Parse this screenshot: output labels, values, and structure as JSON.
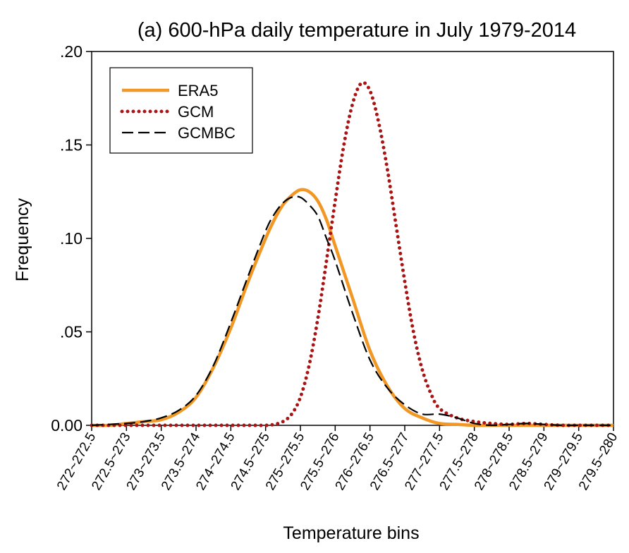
{
  "chart_data": {
    "type": "line",
    "title": "(a) 600-hPa daily temperature in July 1979-2014",
    "xlabel": "Temperature bins",
    "ylabel": "Frequency",
    "ylim": [
      0,
      0.2
    ],
    "y_ticks": [
      {
        "value": 0.0,
        "label": "0.00"
      },
      {
        "value": 0.05,
        "label": ".05"
      },
      {
        "value": 0.1,
        "label": ".10"
      },
      {
        "value": 0.15,
        "label": ".15"
      },
      {
        "value": 0.2,
        "label": ".20"
      }
    ],
    "categories": [
      "272~272.5",
      "272.5~273",
      "273~273.5",
      "273.5~274",
      "274~274.5",
      "274.5~275",
      "275~275.5",
      "275.5~276",
      "276~276.5",
      "276.5~277",
      "277~277.5",
      "277.5~278",
      "278~278.5",
      "278.5~279",
      "279~279.5",
      "279.5~280"
    ],
    "legend_position": "top-left",
    "series": [
      {
        "name": "ERA5",
        "color": "#f29624",
        "style": "solid",
        "x": [
          0,
          0.5,
          1,
          1.5,
          2,
          2.5,
          3,
          3.5,
          4,
          4.5,
          5,
          5.25,
          5.5,
          5.75,
          6,
          6.25,
          6.5,
          6.75,
          7,
          7.5,
          8,
          8.5,
          9,
          9.5,
          10,
          10.5,
          11,
          11.5,
          12,
          12.5,
          13,
          13.5,
          14,
          14.5,
          15
        ],
        "values": [
          0,
          0,
          0.001,
          0.002,
          0.003,
          0.007,
          0.015,
          0.031,
          0.052,
          0.077,
          0.1,
          0.11,
          0.118,
          0.123,
          0.126,
          0.125,
          0.12,
          0.11,
          0.096,
          0.068,
          0.04,
          0.021,
          0.009,
          0.004,
          0.001,
          0.0005,
          0,
          0,
          0,
          0,
          0,
          0,
          0,
          0,
          0
        ]
      },
      {
        "name": "GCM",
        "color": "#aa1414",
        "style": "dotted",
        "x": [
          0,
          1,
          2,
          3,
          4,
          4.5,
          5,
          5.25,
          5.5,
          5.75,
          6,
          6.25,
          6.5,
          6.75,
          7,
          7.25,
          7.5,
          7.75,
          8,
          8.25,
          8.5,
          8.75,
          9,
          9.25,
          9.5,
          9.75,
          10,
          10.5,
          11,
          11.5,
          12,
          12.5,
          13,
          13.5,
          14,
          14.5,
          15
        ],
        "values": [
          0,
          0,
          0,
          0,
          0,
          0,
          0,
          0.0005,
          0.002,
          0.006,
          0.015,
          0.032,
          0.057,
          0.088,
          0.12,
          0.15,
          0.172,
          0.183,
          0.179,
          0.162,
          0.137,
          0.107,
          0.077,
          0.05,
          0.03,
          0.017,
          0.009,
          0.004,
          0.002,
          0.001,
          0.0005,
          0.001,
          0.0005,
          0,
          0,
          0,
          0
        ]
      },
      {
        "name": "GCMBC",
        "color": "#000000",
        "style": "dashed",
        "x": [
          0,
          0.5,
          1,
          1.5,
          2,
          2.5,
          3,
          3.5,
          4,
          4.5,
          5,
          5.25,
          5.5,
          5.75,
          6,
          6.25,
          6.5,
          6.75,
          7,
          7.5,
          8,
          8.5,
          9,
          9.5,
          10,
          10.5,
          11,
          11.5,
          12,
          12.5,
          13,
          13.5,
          14,
          14.5,
          15
        ],
        "values": [
          0,
          0.0005,
          0.001,
          0.002,
          0.004,
          0.008,
          0.016,
          0.032,
          0.055,
          0.08,
          0.104,
          0.113,
          0.119,
          0.122,
          0.122,
          0.118,
          0.112,
          0.1,
          0.088,
          0.06,
          0.035,
          0.02,
          0.011,
          0.006,
          0.006,
          0.004,
          0.001,
          0,
          0.0005,
          0.001,
          0.0005,
          0,
          0,
          0,
          0
        ]
      }
    ]
  }
}
